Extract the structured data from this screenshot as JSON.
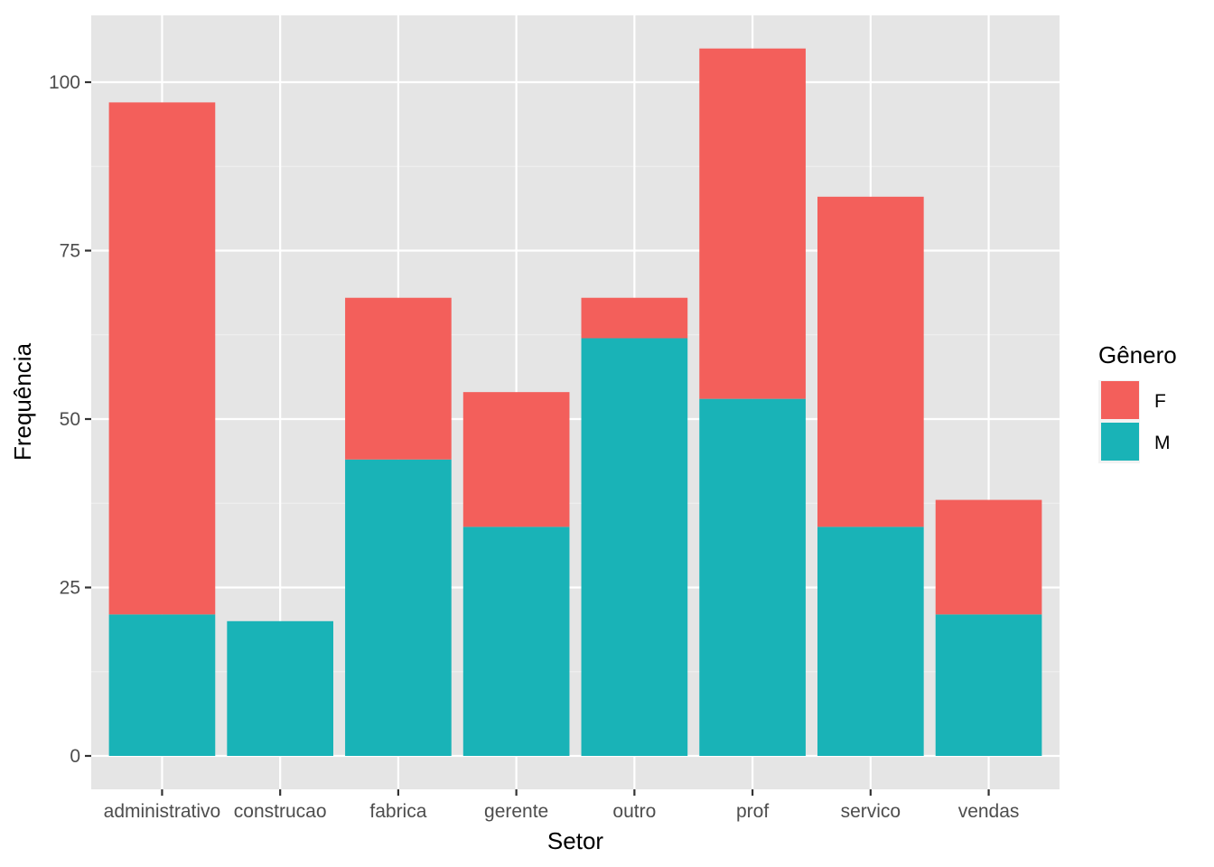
{
  "chart_data": {
    "type": "bar",
    "stacked": true,
    "categories": [
      "administrativo",
      "construcao",
      "fabrica",
      "gerente",
      "outro",
      "prof",
      "servico",
      "vendas"
    ],
    "series": [
      {
        "name": "F",
        "color": "#F35F5B",
        "values": [
          76,
          0,
          24,
          20,
          6,
          52,
          49,
          17
        ]
      },
      {
        "name": "M",
        "color": "#19B3B7",
        "values": [
          21,
          20,
          44,
          34,
          62,
          53,
          34,
          21
        ]
      }
    ],
    "xlabel": "Setor",
    "ylabel": "Frequência",
    "ylim": [
      0,
      110
    ],
    "yticks": [
      0,
      25,
      50,
      75,
      100
    ],
    "grid": true,
    "legend": {
      "title": "Gênero",
      "placement": "right"
    }
  }
}
